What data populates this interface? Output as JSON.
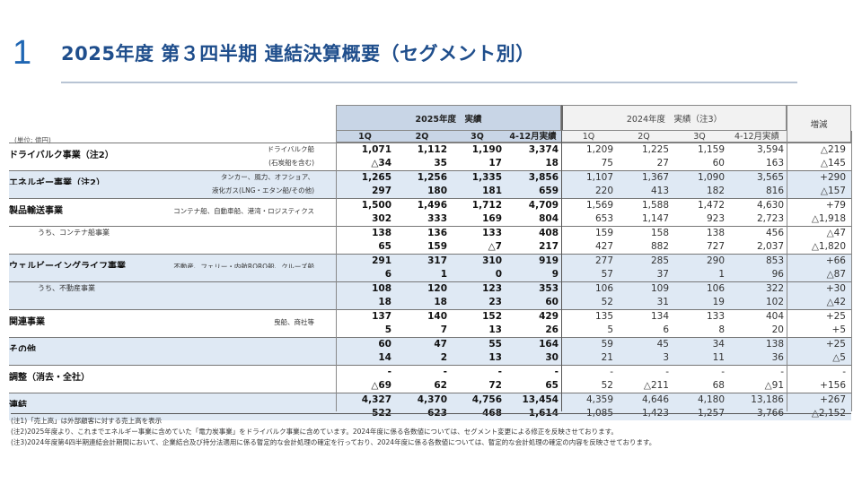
{
  "slide_number": "1",
  "title": "2025年度 第３四半期 連結決算概要（セグメント別）",
  "unit": "(単位: 億円)",
  "header": {
    "current_year": "2025年度　実績",
    "prev_year": "2024年度　実績（注3）",
    "diff": "増減",
    "cur_cols": [
      "1Q",
      "2Q",
      "3Q",
      "4-12月実績"
    ],
    "prev_cols": [
      "1Q",
      "2Q",
      "3Q",
      "4-12月実績"
    ]
  },
  "segments": [
    {
      "name": "ドライバルク事業（注2）",
      "desc1": "ドライバルク船",
      "desc2": "(石炭船を含む)",
      "shade": false,
      "sales": {
        "cur": [
          "1,071",
          "1,112",
          "1,190",
          "3,374"
        ],
        "prev": [
          "1,209",
          "1,225",
          "1,159",
          "3,594"
        ],
        "diff": "△219"
      },
      "profit": {
        "cur": [
          "△34",
          "35",
          "17",
          "18"
        ],
        "prev": [
          "75",
          "27",
          "60",
          "163"
        ],
        "diff": "△145"
      }
    },
    {
      "name": "エネルギー事業（注2）",
      "desc1": "タンカー、風力、オフショア、",
      "desc2": "液化ガス(LNG・エタン船/その他)",
      "shade": true,
      "sales": {
        "cur": [
          "1,265",
          "1,256",
          "1,335",
          "3,856"
        ],
        "prev": [
          "1,107",
          "1,367",
          "1,090",
          "3,565"
        ],
        "diff": "+290"
      },
      "profit": {
        "cur": [
          "297",
          "180",
          "181",
          "659"
        ],
        "prev": [
          "220",
          "413",
          "182",
          "816"
        ],
        "diff": "△157"
      }
    },
    {
      "name": "製品輸送事業",
      "desc1": "コンテナ船、自動車船、港湾・ロジスティクス",
      "desc2": "",
      "shade": false,
      "sales": {
        "cur": [
          "1,500",
          "1,496",
          "1,712",
          "4,709"
        ],
        "prev": [
          "1,569",
          "1,588",
          "1,472",
          "4,630"
        ],
        "diff": "+79"
      },
      "profit": {
        "cur": [
          "302",
          "333",
          "169",
          "804"
        ],
        "prev": [
          "653",
          "1,147",
          "923",
          "2,723"
        ],
        "diff": "△1,918"
      }
    },
    {
      "name": "うち、コンテナ船事業",
      "sub": true,
      "desc1": "",
      "desc2": "",
      "shade": false,
      "sales": {
        "cur": [
          "138",
          "136",
          "133",
          "408"
        ],
        "prev": [
          "159",
          "158",
          "138",
          "456"
        ],
        "diff": "△47"
      },
      "profit": {
        "cur": [
          "65",
          "159",
          "△7",
          "217"
        ],
        "prev": [
          "427",
          "882",
          "727",
          "2,037"
        ],
        "diff": "△1,820"
      }
    },
    {
      "name": "ウェルビーイングライフ事業",
      "desc1": "不動産、フェリー・内航RORO船、クルーズ船",
      "desc2": "",
      "shade": true,
      "sales": {
        "cur": [
          "291",
          "317",
          "310",
          "919"
        ],
        "prev": [
          "277",
          "285",
          "290",
          "853"
        ],
        "diff": "+66"
      },
      "profit": {
        "cur": [
          "6",
          "1",
          "0",
          "9"
        ],
        "prev": [
          "57",
          "37",
          "1",
          "96"
        ],
        "diff": "△87"
      }
    },
    {
      "name": "うち、不動産事業",
      "sub": true,
      "desc1": "",
      "desc2": "",
      "shade": true,
      "sales": {
        "cur": [
          "108",
          "120",
          "123",
          "353"
        ],
        "prev": [
          "106",
          "109",
          "106",
          "322"
        ],
        "diff": "+30"
      },
      "profit": {
        "cur": [
          "18",
          "18",
          "23",
          "60"
        ],
        "prev": [
          "52",
          "31",
          "19",
          "102"
        ],
        "diff": "△42"
      }
    },
    {
      "name": "関連事業",
      "desc1": "曳船、商社等",
      "desc2": "",
      "shade": false,
      "sales": {
        "cur": [
          "137",
          "140",
          "152",
          "429"
        ],
        "prev": [
          "135",
          "134",
          "133",
          "404"
        ],
        "diff": "+25"
      },
      "profit": {
        "cur": [
          "5",
          "7",
          "13",
          "26"
        ],
        "prev": [
          "5",
          "6",
          "8",
          "20"
        ],
        "diff": "+5"
      }
    },
    {
      "name": "その他",
      "desc1": "",
      "desc2": "",
      "shade": true,
      "sales": {
        "cur": [
          "60",
          "47",
          "55",
          "164"
        ],
        "prev": [
          "59",
          "45",
          "34",
          "138"
        ],
        "diff": "+25"
      },
      "profit": {
        "cur": [
          "14",
          "2",
          "13",
          "30"
        ],
        "prev": [
          "21",
          "3",
          "11",
          "36"
        ],
        "diff": "△5"
      }
    },
    {
      "name": "調整（消去・全社）",
      "desc1": "",
      "desc2": "",
      "shade": false,
      "sales": {
        "cur": [
          "-",
          "-",
          "-",
          "-"
        ],
        "prev": [
          "-",
          "-",
          "-",
          "-"
        ],
        "diff": "-"
      },
      "profit": {
        "cur": [
          "△69",
          "62",
          "72",
          "65"
        ],
        "prev": [
          "52",
          "△211",
          "68",
          "△91"
        ],
        "diff": "+156"
      }
    },
    {
      "name": "連結",
      "desc1": "",
      "desc2": "",
      "shade": true,
      "sales": {
        "cur": [
          "4,327",
          "4,370",
          "4,756",
          "13,454"
        ],
        "prev": [
          "4,359",
          "4,646",
          "4,180",
          "13,186"
        ],
        "diff": "+267"
      },
      "profit": {
        "cur": [
          "522",
          "623",
          "468",
          "1,614"
        ],
        "prev": [
          "1,085",
          "1,423",
          "1,257",
          "3,766"
        ],
        "diff": "△2,152"
      }
    }
  ],
  "notes": [
    "(注1)「売上高」は外部顧客に対する売上高を表示",
    "(注2)2025年度より、これまでエネルギー事業に含めていた「電力炭事業」をドライバルク事業に含めています。2024年度に係る各数値については、セグメント変更による修正を反映させております。",
    "(注3)2024年度第4四半期連結会計期間において、企業結合及び持分法適用に係る暫定的な会計処理の確定を行っており、2024年度に係る各数値については、暫定的な会計処理の確定の内容を反映させております。"
  ]
}
